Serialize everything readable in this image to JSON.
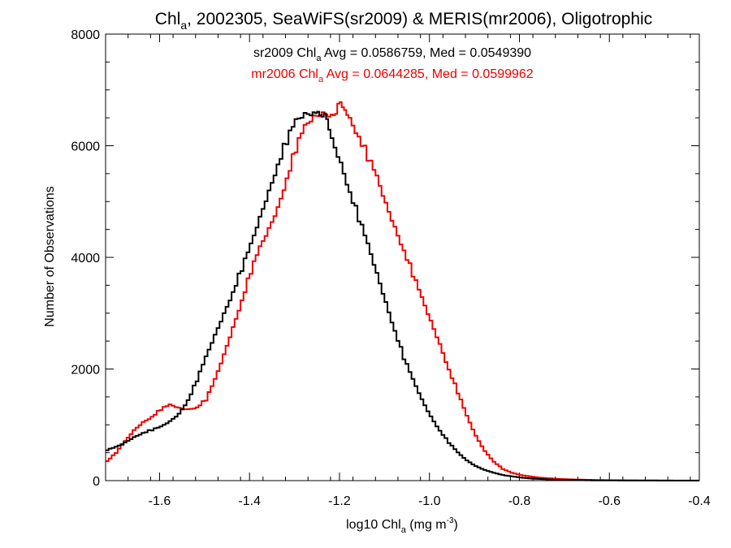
{
  "chart_data": {
    "type": "line",
    "title": {
      "prefix": "Chl",
      "sub": "a",
      "suffix": ", 2002305, SeaWiFS(sr2009) & MERIS(mr2006), Oligotrophic"
    },
    "xlabel": {
      "prefix": "log10 Chl",
      "sub": "a",
      "mid": " (mg m",
      "sup": "-3",
      "suffix": ")"
    },
    "ylabel": "Number of Observations",
    "xlim": [
      -1.72,
      -0.4
    ],
    "ylim": [
      0,
      8000
    ],
    "x_ticks": [
      -1.6,
      -1.4,
      -1.2,
      -1.0,
      -0.8,
      -0.6,
      -0.4
    ],
    "x_tick_labels": [
      "-1.6",
      "-1.4",
      "-1.2",
      "-1.0",
      "-0.8",
      "-0.6",
      "-0.4"
    ],
    "y_ticks": [
      0,
      2000,
      4000,
      6000,
      8000
    ],
    "y_tick_labels": [
      "0",
      "2000",
      "4000",
      "6000",
      "8000"
    ],
    "grid": false,
    "series": [
      {
        "name": "sr2009",
        "color": "#000000",
        "x": [
          -1.72,
          -1.7,
          -1.68,
          -1.66,
          -1.64,
          -1.62,
          -1.6,
          -1.58,
          -1.56,
          -1.54,
          -1.52,
          -1.5,
          -1.48,
          -1.46,
          -1.44,
          -1.42,
          -1.4,
          -1.38,
          -1.36,
          -1.34,
          -1.32,
          -1.3,
          -1.28,
          -1.26,
          -1.25,
          -1.24,
          -1.23,
          -1.22,
          -1.2,
          -1.18,
          -1.16,
          -1.14,
          -1.12,
          -1.1,
          -1.08,
          -1.06,
          -1.04,
          -1.02,
          -1.0,
          -0.98,
          -0.96,
          -0.94,
          -0.92,
          -0.9,
          -0.88,
          -0.86,
          -0.84,
          -0.82,
          -0.8,
          -0.78,
          -0.76,
          -0.74,
          -0.72,
          -0.7,
          -0.68,
          -0.66,
          -0.64,
          -0.62,
          -0.6,
          -0.58,
          -0.56,
          -0.54,
          -0.52,
          -0.5,
          -0.48,
          -0.46,
          -0.44,
          -0.42,
          -0.4
        ],
        "y": [
          550,
          600,
          680,
          780,
          860,
          910,
          960,
          1060,
          1200,
          1450,
          1800,
          2200,
          2600,
          3000,
          3400,
          3800,
          4200,
          4700,
          5200,
          5700,
          6100,
          6400,
          6550,
          6600,
          6650,
          6600,
          6400,
          6100,
          5700,
          5200,
          4700,
          4200,
          3700,
          3200,
          2700,
          2200,
          1800,
          1450,
          1150,
          900,
          680,
          500,
          360,
          260,
          190,
          140,
          100,
          75,
          55,
          40,
          30,
          22,
          16,
          12,
          9,
          7,
          5,
          4,
          3,
          2,
          2,
          1,
          1,
          1,
          0,
          0,
          0,
          0,
          0
        ]
      },
      {
        "name": "mr2006",
        "color": "#ee0000",
        "x": [
          -1.72,
          -1.7,
          -1.68,
          -1.66,
          -1.64,
          -1.62,
          -1.6,
          -1.58,
          -1.56,
          -1.54,
          -1.52,
          -1.5,
          -1.48,
          -1.46,
          -1.44,
          -1.42,
          -1.4,
          -1.38,
          -1.36,
          -1.34,
          -1.32,
          -1.3,
          -1.28,
          -1.26,
          -1.24,
          -1.22,
          -1.21,
          -1.2,
          -1.19,
          -1.18,
          -1.16,
          -1.14,
          -1.12,
          -1.1,
          -1.08,
          -1.06,
          -1.04,
          -1.02,
          -1.0,
          -0.98,
          -0.96,
          -0.94,
          -0.92,
          -0.9,
          -0.88,
          -0.86,
          -0.84,
          -0.82,
          -0.8,
          -0.78,
          -0.76,
          -0.74,
          -0.72,
          -0.7,
          -0.68,
          -0.66,
          -0.64,
          -0.62,
          -0.6,
          -0.58,
          -0.56,
          -0.54,
          -0.52,
          -0.5,
          -0.48,
          -0.46,
          -0.44,
          -0.42,
          -0.4
        ],
        "y": [
          350,
          500,
          700,
          900,
          1050,
          1150,
          1280,
          1350,
          1300,
          1280,
          1320,
          1450,
          1800,
          2250,
          2750,
          3250,
          3750,
          4150,
          4500,
          4900,
          5450,
          5950,
          6300,
          6500,
          6600,
          6600,
          6650,
          6700,
          6600,
          6500,
          6200,
          5800,
          5400,
          4950,
          4550,
          4150,
          3700,
          3250,
          2850,
          2450,
          2000,
          1580,
          1150,
          800,
          530,
          340,
          210,
          140,
          100,
          75,
          55,
          42,
          32,
          25,
          20,
          16,
          13,
          10,
          8,
          7,
          6,
          5,
          4,
          3,
          3,
          2,
          2,
          1,
          1
        ]
      }
    ],
    "annotations": [
      {
        "color": "#000000",
        "prefix": "sr2009 Chl",
        "sub": "a",
        "suffix": " Avg = 0.0586759, Med = 0.0549390"
      },
      {
        "color": "#ee0000",
        "prefix": "mr2006 Chl",
        "sub": "a",
        "suffix": " Avg = 0.0644285, Med = 0.0599962"
      }
    ]
  }
}
